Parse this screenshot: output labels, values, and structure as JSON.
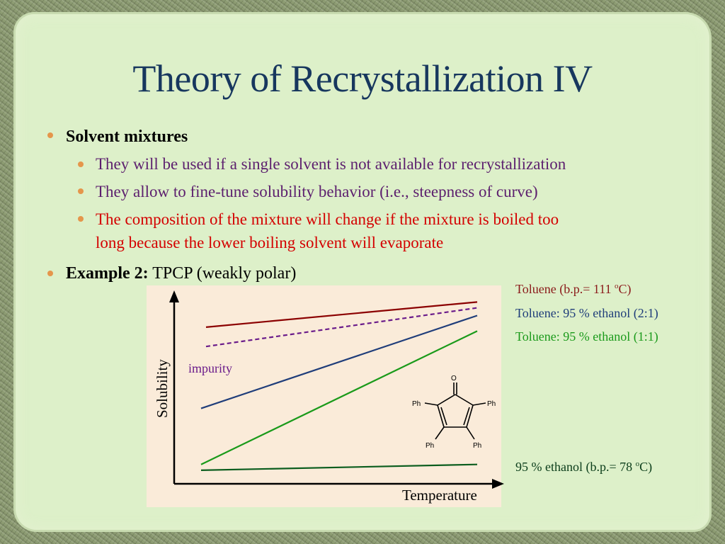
{
  "slide": {
    "title": "Theory of Recrystallization IV",
    "bullets": {
      "solvent_mixtures": "Solvent mixtures",
      "sub1": "They will be used if a single solvent is not available for recrystallization",
      "sub2": "They allow to fine-tune solubility behavior (i.e., steepness of curve)",
      "sub3_line1": "The composition of the mixture will change if the mixture is boiled too",
      "sub3_line2": "long because the lower boiling solvent will evaporate",
      "example_bold": "Example 2:",
      "example_rest": " TPCP (weakly polar)"
    },
    "colors": {
      "title": "#17375e",
      "bullet_marker": "#e5964b",
      "sub_text": "#5c1f6e",
      "warning_text": "#d40000",
      "panel_bg": "#ddf0c9",
      "chart_bg": "#faebd9"
    }
  },
  "chart_data": {
    "type": "line",
    "xlabel": "Temperature",
    "ylabel": "Solubility",
    "series": [
      {
        "name": "Toluene (b.p.= 111 oC)",
        "color": "#8b0000",
        "style": "solid",
        "y_start": 0.81,
        "y_end": 0.94
      },
      {
        "name": "impurity",
        "color": "#6a1b8a",
        "style": "dashed",
        "y_start": 0.71,
        "y_end": 0.91
      },
      {
        "name": "Toluene: 95 % ethanol (2:1)",
        "color": "#1f3d7a",
        "style": "solid",
        "y_start": 0.39,
        "y_end": 0.87
      },
      {
        "name": "Toluene: 95 % ethanol (1:1)",
        "color": "#1a9a1a",
        "style": "solid",
        "y_start": 0.1,
        "y_end": 0.79
      },
      {
        "name": "95 % ethanol (b.p.= 78 oC)",
        "color": "#0b5d1e",
        "style": "solid",
        "y_start": 0.07,
        "y_end": 0.1
      }
    ],
    "legend_labels": [
      {
        "text": "Toluene (b.p.= 111 ",
        "sup": "o",
        "tail": "C)",
        "color": "#8b1a1a"
      },
      {
        "text": "Toluene: 95 % ethanol (2:1)",
        "color": "#1f3d7a"
      },
      {
        "text": "Toluene: 95 % ethanol (1:1)",
        "color": "#1a9a1a"
      },
      {
        "text": "95 % ethanol (b.p.= 78 ",
        "sup": "o",
        "tail": "C)",
        "color": "#0b3d1a"
      }
    ],
    "annotation": "impurity",
    "molecule": {
      "name": "TPCP",
      "atom_o": "O",
      "ph1": "Ph",
      "ph2": "Ph",
      "ph3": "Ph",
      "ph4": "Ph"
    }
  }
}
